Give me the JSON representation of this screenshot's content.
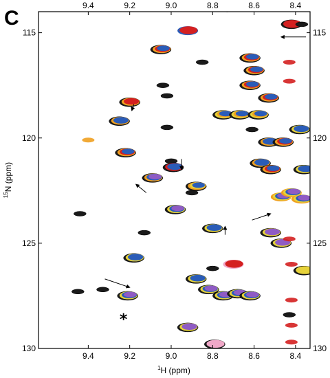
{
  "panel_label": "C",
  "colors": {
    "black": "#1a1a1a",
    "orange": "#f0a020",
    "red": "#d42020",
    "blue": "#2a5cb8",
    "yellow": "#e6d23a",
    "purple": "#8f5bc4",
    "pink": "#f0a8c8"
  },
  "chart_data": {
    "type": "scatter",
    "title": "",
    "xlabel": "1H (ppm)",
    "xlabel_parts": {
      "sup": "1",
      "main": "H (ppm)"
    },
    "ylabel": "15N (ppm)",
    "ylabel_parts": {
      "sup": "15",
      "main": "N (ppm)"
    },
    "x_reversed": true,
    "y_reversed": true,
    "xlim": [
      9.64,
      8.33
    ],
    "ylim": [
      114.0,
      130.0
    ],
    "x_ticks": [
      {
        "v": 9.4,
        "label": "9.4"
      },
      {
        "v": 9.2,
        "label": "9.2"
      },
      {
        "v": 9.0,
        "label": "9.0"
      },
      {
        "v": 8.8,
        "label": "8.8"
      },
      {
        "v": 8.6,
        "label": "8.6"
      },
      {
        "v": 8.4,
        "label": "8.4"
      }
    ],
    "y_ticks": [
      {
        "v": 115,
        "label": "115"
      },
      {
        "v": 120,
        "label": "120"
      },
      {
        "v": 125,
        "label": "125"
      },
      {
        "v": 130,
        "label": "130"
      }
    ],
    "asterisk": {
      "x": 9.23,
      "y": 128.6,
      "label": "*"
    },
    "peaks": [
      {
        "x": 9.44,
        "y": 123.6,
        "c": [
          "black"
        ]
      },
      {
        "x": 9.45,
        "y": 127.3,
        "c": [
          "black"
        ]
      },
      {
        "x": 9.33,
        "y": 127.2,
        "c": [
          "black"
        ]
      },
      {
        "x": 9.21,
        "y": 127.5,
        "c": [
          "black",
          "yellow",
          "blue",
          "purple"
        ]
      },
      {
        "x": 9.18,
        "y": 125.7,
        "c": [
          "black",
          "yellow",
          "blue"
        ]
      },
      {
        "x": 9.13,
        "y": 124.5,
        "c": [
          "black"
        ]
      },
      {
        "x": 9.22,
        "y": 120.7,
        "c": [
          "black",
          "orange",
          "red",
          "blue"
        ]
      },
      {
        "x": 9.25,
        "y": 119.2,
        "c": [
          "black",
          "orange",
          "blue"
        ]
      },
      {
        "x": 9.2,
        "y": 118.3,
        "c": [
          "black",
          "orange",
          "red"
        ]
      },
      {
        "x": 9.09,
        "y": 121.9,
        "c": [
          "black",
          "orange",
          "blue",
          "purple"
        ]
      },
      {
        "x": 9.04,
        "y": 117.5,
        "c": [
          "black"
        ]
      },
      {
        "x": 9.02,
        "y": 119.5,
        "c": [
          "black"
        ]
      },
      {
        "x": 9.02,
        "y": 118.0,
        "c": [
          "black"
        ]
      },
      {
        "x": 9.05,
        "y": 115.8,
        "c": [
          "black",
          "orange",
          "red",
          "blue"
        ]
      },
      {
        "x": 9.0,
        "y": 121.1,
        "c": [
          "black"
        ]
      },
      {
        "x": 8.99,
        "y": 121.4,
        "c": [
          "black",
          "red",
          "blue"
        ]
      },
      {
        "x": 8.98,
        "y": 123.4,
        "c": [
          "black",
          "yellow",
          "blue",
          "purple"
        ]
      },
      {
        "x": 8.92,
        "y": 114.9,
        "c": [
          "blue",
          "red"
        ]
      },
      {
        "x": 8.88,
        "y": 122.3,
        "c": [
          "black",
          "orange",
          "yellow",
          "blue"
        ]
      },
      {
        "x": 8.9,
        "y": 122.6,
        "c": [
          "black"
        ]
      },
      {
        "x": 8.88,
        "y": 126.7,
        "c": [
          "black",
          "yellow",
          "blue"
        ]
      },
      {
        "x": 8.92,
        "y": 129.0,
        "c": [
          "black",
          "yellow",
          "purple"
        ]
      },
      {
        "x": 8.85,
        "y": 116.4,
        "c": [
          "black"
        ]
      },
      {
        "x": 8.8,
        "y": 124.3,
        "c": [
          "black",
          "yellow",
          "blue"
        ]
      },
      {
        "x": 8.8,
        "y": 126.2,
        "c": [
          "black"
        ]
      },
      {
        "x": 8.82,
        "y": 127.2,
        "c": [
          "black",
          "yellow",
          "blue",
          "purple"
        ]
      },
      {
        "x": 8.75,
        "y": 127.5,
        "c": [
          "black",
          "yellow",
          "blue",
          "purple"
        ]
      },
      {
        "x": 8.68,
        "y": 127.4,
        "c": [
          "black",
          "yellow",
          "blue",
          "purple"
        ]
      },
      {
        "x": 8.62,
        "y": 127.5,
        "c": [
          "black",
          "yellow",
          "blue",
          "purple"
        ]
      },
      {
        "x": 8.7,
        "y": 126.0,
        "c": [
          "pink",
          "red"
        ]
      },
      {
        "x": 8.79,
        "y": 129.8,
        "c": [
          "black",
          "pink"
        ]
      },
      {
        "x": 8.73,
        "y": 113.9,
        "c": [
          "black"
        ]
      },
      {
        "x": 8.75,
        "y": 118.9,
        "c": [
          "black",
          "yellow",
          "orange",
          "blue"
        ]
      },
      {
        "x": 8.67,
        "y": 118.9,
        "c": [
          "black",
          "yellow",
          "orange",
          "blue"
        ]
      },
      {
        "x": 8.58,
        "y": 118.9,
        "c": [
          "black",
          "yellow",
          "orange",
          "blue"
        ]
      },
      {
        "x": 8.62,
        "y": 116.2,
        "c": [
          "black",
          "orange",
          "red",
          "blue"
        ]
      },
      {
        "x": 8.6,
        "y": 116.8,
        "c": [
          "black",
          "orange",
          "red",
          "blue"
        ]
      },
      {
        "x": 8.62,
        "y": 117.5,
        "c": [
          "black",
          "orange",
          "red",
          "blue"
        ]
      },
      {
        "x": 8.53,
        "y": 118.1,
        "c": [
          "black",
          "orange",
          "red",
          "blue"
        ]
      },
      {
        "x": 8.61,
        "y": 119.6,
        "c": [
          "black"
        ]
      },
      {
        "x": 8.57,
        "y": 121.2,
        "c": [
          "black",
          "orange",
          "blue"
        ]
      },
      {
        "x": 8.52,
        "y": 121.5,
        "c": [
          "black",
          "orange",
          "red",
          "blue"
        ]
      },
      {
        "x": 8.53,
        "y": 120.2,
        "c": [
          "black",
          "orange",
          "blue"
        ]
      },
      {
        "x": 8.46,
        "y": 120.2,
        "c": [
          "black",
          "orange",
          "red",
          "blue"
        ]
      },
      {
        "x": 8.47,
        "y": 122.8,
        "c": [
          "orange",
          "yellow",
          "blue",
          "purple"
        ]
      },
      {
        "x": 8.42,
        "y": 122.6,
        "c": [
          "orange",
          "yellow",
          "blue",
          "purple"
        ]
      },
      {
        "x": 8.37,
        "y": 122.9,
        "c": [
          "orange",
          "yellow",
          "blue",
          "purple"
        ]
      },
      {
        "x": 8.52,
        "y": 124.5,
        "c": [
          "black",
          "yellow",
          "purple"
        ]
      },
      {
        "x": 8.47,
        "y": 125.0,
        "c": [
          "black",
          "yellow",
          "purple"
        ]
      },
      {
        "x": 8.38,
        "y": 119.6,
        "c": [
          "black",
          "yellow",
          "blue"
        ]
      },
      {
        "x": 8.36,
        "y": 121.5,
        "c": [
          "black",
          "yellow",
          "blue"
        ]
      },
      {
        "x": 8.36,
        "y": 126.3,
        "c": [
          "black",
          "yellow"
        ]
      },
      {
        "x": 8.42,
        "y": 114.6,
        "c": [
          "black",
          "red"
        ]
      },
      {
        "x": 8.37,
        "y": 114.6,
        "c": [
          "black"
        ]
      },
      {
        "x": 9.4,
        "y": 120.1,
        "c": [
          "orange"
        ]
      },
      {
        "x": 8.43,
        "y": 116.4,
        "c": [
          "red"
        ]
      },
      {
        "x": 8.43,
        "y": 117.3,
        "c": [
          "red"
        ]
      },
      {
        "x": 8.43,
        "y": 124.8,
        "c": [
          "red"
        ]
      },
      {
        "x": 8.42,
        "y": 126.0,
        "c": [
          "red"
        ]
      },
      {
        "x": 8.42,
        "y": 127.7,
        "c": [
          "red"
        ]
      },
      {
        "x": 8.42,
        "y": 128.9,
        "c": [
          "red"
        ]
      },
      {
        "x": 8.42,
        "y": 129.7,
        "c": [
          "red"
        ]
      },
      {
        "x": 8.43,
        "y": 128.4,
        "c": [
          "black"
        ]
      }
    ],
    "arrows": [
      {
        "from": [
          8.35,
          115.2
        ],
        "to": [
          8.47,
          115.2
        ]
      },
      {
        "from": [
          9.18,
          118.4
        ],
        "to": [
          9.19,
          118.7
        ]
      },
      {
        "from": [
          8.95,
          121.0
        ],
        "to": [
          8.95,
          121.5
        ]
      },
      {
        "from": [
          9.12,
          122.6
        ],
        "to": [
          9.17,
          122.2
        ]
      },
      {
        "from": [
          8.74,
          124.6
        ],
        "to": [
          8.74,
          124.2
        ]
      },
      {
        "from": [
          8.61,
          123.9
        ],
        "to": [
          8.52,
          123.6
        ]
      },
      {
        "from": [
          9.32,
          126.7
        ],
        "to": [
          9.2,
          127.1
        ]
      }
    ]
  }
}
